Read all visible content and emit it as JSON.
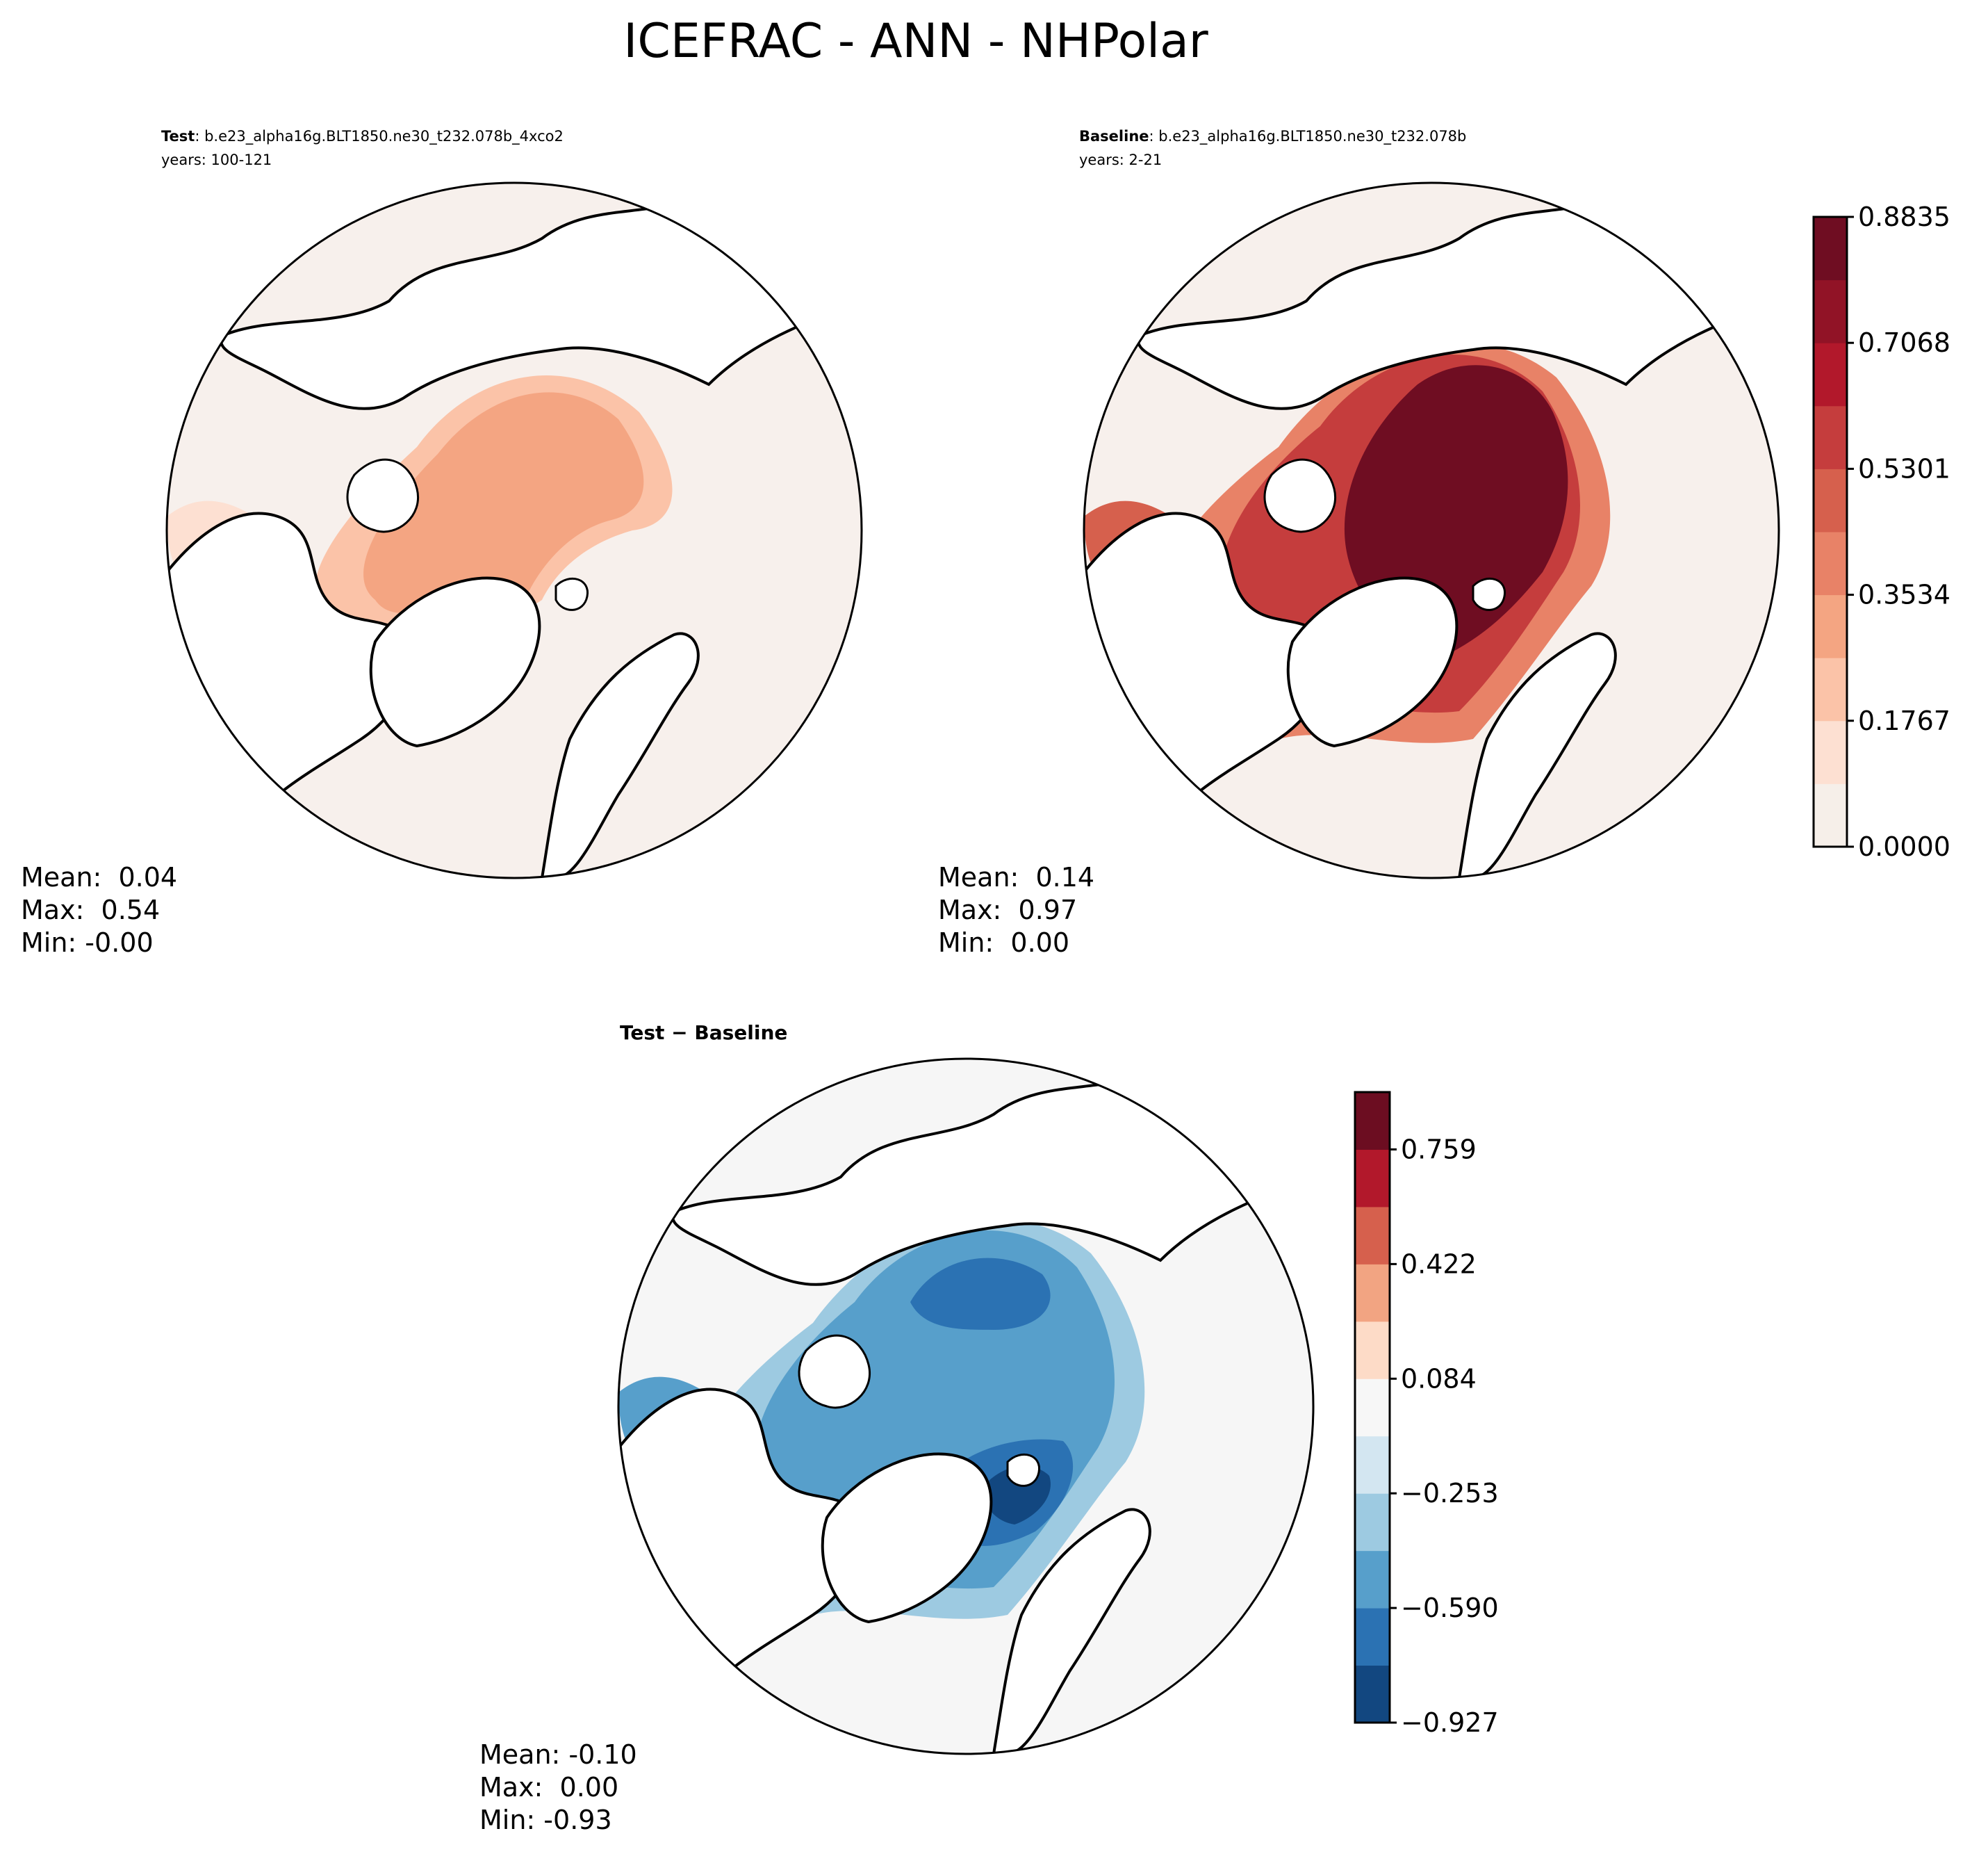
{
  "figure": {
    "title": "ICEFRAC - ANN - NHPolar"
  },
  "panels": {
    "test": {
      "label": "Test",
      "case": ": b.e23_alpha16g.BLT1850.ne30_t232.078b_4xco2",
      "years": "years: 100-121",
      "stats": {
        "mean": "Mean:  0.04",
        "max": "Max:  0.54",
        "min": "Min: -0.00"
      }
    },
    "baseline": {
      "label": "Baseline",
      "case": ": b.e23_alpha16g.BLT1850.ne30_t232.078b",
      "years": "years: 2-21",
      "stats": {
        "mean": "Mean:  0.14",
        "max": "Max:  0.97",
        "min": "Min:  0.00"
      }
    },
    "diff": {
      "label": "Test − Baseline",
      "stats": {
        "mean": "Mean: -0.10",
        "max": "Max:  0.00",
        "min": "Min: -0.93"
      }
    }
  },
  "colorbars": {
    "main": {
      "ticks": [
        "0.0000",
        "0.1767",
        "0.3534",
        "0.5301",
        "0.7068",
        "0.8835"
      ],
      "colors": [
        "#f6efe9",
        "#fde0d2",
        "#fbc3a8",
        "#f4a582",
        "#e88267",
        "#d6604d",
        "#c53d3d",
        "#b2182b",
        "#911326",
        "#6f0d22"
      ]
    },
    "diff": {
      "ticks": [
        "−0.927",
        "−0.590",
        "−0.253",
        "0.084",
        "0.422",
        "0.759"
      ],
      "colors": [
        "#124780",
        "#2b72b3",
        "#579fcb",
        "#9dcae1",
        "#d3e6f1",
        "#f7f7f7",
        "#fddbc7",
        "#f2a482",
        "#d6604d",
        "#b2182b",
        "#6c0d21"
      ]
    }
  },
  "colors": {
    "ocean_main": "#f7f0ec",
    "ocean_diff": "#f6f6f6",
    "land": "#ffffff",
    "coast": "#000000"
  }
}
